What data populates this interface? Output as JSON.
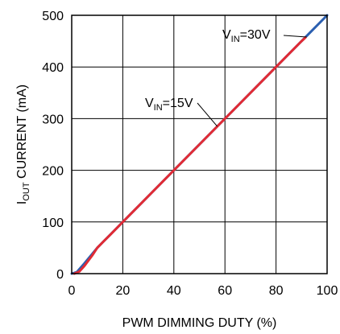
{
  "chart_data": {
    "type": "line",
    "xlabel": "PWM DIMMING DUTY (%)",
    "ylabel": {
      "main": "I",
      "sub": "OUT",
      "rest": " CURRENT (mA)"
    },
    "xlim": [
      0,
      100
    ],
    "ylim": [
      0,
      500
    ],
    "xticks": [
      0,
      20,
      40,
      60,
      80,
      100
    ],
    "yticks": [
      0,
      100,
      200,
      300,
      400,
      500
    ],
    "grid": true,
    "series": [
      {
        "key": "vin30",
        "color": "#2b5fb0",
        "x": [
          0,
          2,
          5,
          10,
          20,
          40,
          60,
          80,
          90,
          100
        ],
        "y": [
          0,
          3,
          20,
          50,
          100,
          200,
          300,
          400,
          450,
          500
        ]
      },
      {
        "key": "vin15",
        "color": "#e02b35",
        "x": [
          1,
          3,
          5,
          8,
          10,
          12,
          15,
          20,
          30,
          40,
          50,
          60,
          70,
          80,
          90,
          91.5
        ],
        "y": [
          0,
          4,
          15,
          35,
          50,
          60,
          75,
          100,
          150,
          200,
          250,
          300,
          350,
          400,
          450,
          457
        ]
      }
    ],
    "annotations": [
      {
        "key": "vin30",
        "main": "V",
        "sub": "IN",
        "rest": "=30V",
        "pointer_to": {
          "x": 92,
          "y": 458
        }
      },
      {
        "key": "vin15",
        "main": "V",
        "sub": "IN",
        "rest": "=15V",
        "pointer_to": {
          "x": 57,
          "y": 285
        }
      }
    ]
  }
}
